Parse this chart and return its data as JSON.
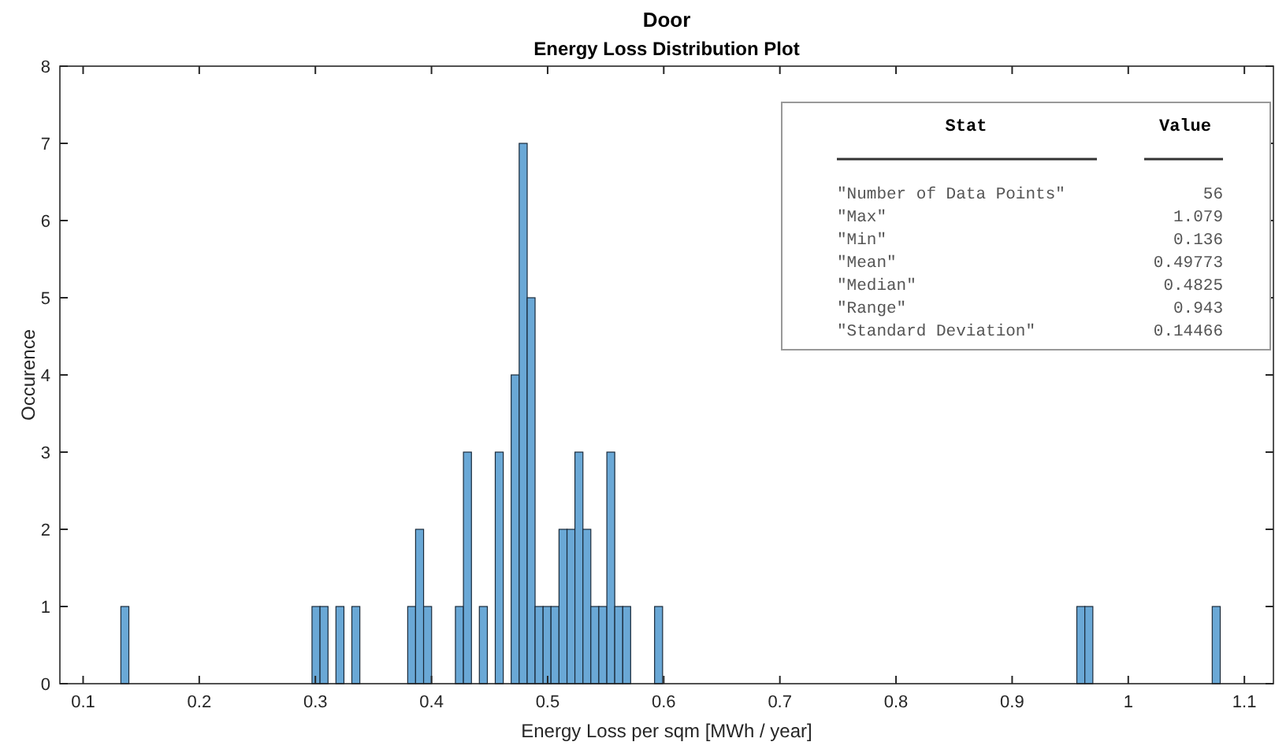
{
  "chart_data": {
    "type": "histogram",
    "title": "Door",
    "subtitle": "Energy Loss Distribution Plot",
    "xlabel": "Energy Loss per sqm [MWh / year]",
    "ylabel": "Occurence",
    "bins": [
      0.1325,
      0.1394,
      0.2971,
      0.304,
      0.3109,
      0.3177,
      0.3246,
      0.3314,
      0.3383,
      0.3795,
      0.3863,
      0.3932,
      0.4001,
      0.4206,
      0.4275,
      0.4344,
      0.4412,
      0.4481,
      0.4549,
      0.4618,
      0.4686,
      0.4755,
      0.4824,
      0.4892,
      0.4961,
      0.5029,
      0.5098,
      0.5167,
      0.5235,
      0.5304,
      0.5372,
      0.5441,
      0.551,
      0.5578,
      0.5647,
      0.5715,
      0.5921,
      0.599,
      0.9557,
      0.9626,
      0.9695,
      1.0723,
      1.0792
    ],
    "values": [
      1,
      0,
      1,
      1,
      0,
      1,
      0,
      1,
      0,
      1,
      2,
      1,
      0,
      1,
      3,
      0,
      1,
      0,
      3,
      0,
      4,
      7,
      5,
      1,
      1,
      1,
      2,
      2,
      3,
      2,
      1,
      1,
      3,
      1,
      1,
      0,
      1,
      0,
      1,
      1,
      0,
      1
    ],
    "color": "#6aa8d6",
    "xlim": [
      0.08,
      1.125
    ],
    "xticks": [
      0.1,
      0.2,
      0.3,
      0.4,
      0.5,
      0.6,
      0.7,
      0.8,
      0.9,
      1,
      1.1
    ],
    "ylim": [
      0,
      8
    ],
    "yticks": [
      0,
      1,
      2,
      3,
      4,
      5,
      6,
      7,
      8
    ],
    "grid": false,
    "annotations": [
      "Stat",
      "Value",
      "\"Number of Data Points\"",
      "56",
      "\"Max\"",
      "1.079",
      "\"Min\"",
      "0.136",
      "\"Mean\"",
      "0.49773",
      "\"Median\"",
      "0.4825",
      "\"Range\"",
      "0.943",
      "\"Standard Deviation\"",
      "0.14466"
    ]
  }
}
